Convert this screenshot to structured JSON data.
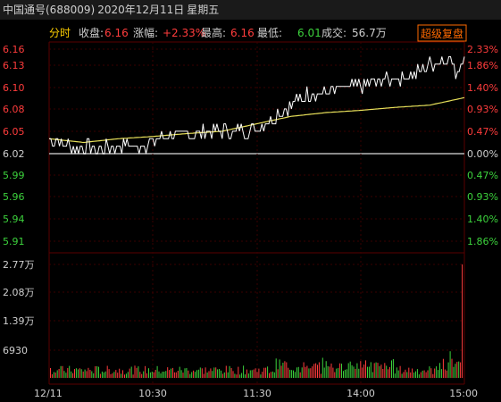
{
  "header": {
    "stock": "中国通号(688009)",
    "date": "2020年12月11日",
    "weekday": "星期五"
  },
  "info": {
    "mode_label": "分时",
    "close_label": "收盘:",
    "close_value": "6.16",
    "change_label": "涨幅:",
    "change_value": "+2.33%",
    "high_label": "最高:",
    "high_value": "6.16",
    "low_label": "最低:",
    "low_value": "6.01",
    "volume_label": "成交:",
    "volume_value": "56.7万",
    "button_label": "超级复盘"
  },
  "colors": {
    "up": "#ff3c3c",
    "down": "#3cd23c",
    "neutral": "#d0d0d0",
    "price_line": "#ffffff",
    "avg_line": "#e8e05a",
    "grid": "#3a0000",
    "accent_button": "#ff6a00"
  },
  "chart_data": {
    "type": "line",
    "base_price": 6.02,
    "price_ticks": [
      "6.16",
      "6.13",
      "6.10",
      "6.08",
      "6.05",
      "6.02",
      "5.99",
      "5.96",
      "5.94",
      "5.91"
    ],
    "pct_ticks": [
      "2.33%",
      "1.86%",
      "1.40%",
      "0.93%",
      "0.47%",
      "0.00%",
      "0.47%",
      "0.93%",
      "1.40%",
      "1.86%"
    ],
    "volume_ticks": [
      "2.77万",
      "2.08万",
      "1.39万",
      "6930"
    ],
    "time_ticks": [
      "12/11",
      "10:30",
      "11:30",
      "14:00",
      "15:00"
    ],
    "ylim": [
      5.88,
      6.16
    ],
    "volume_max": 27700,
    "price_keyframes": [
      [
        0,
        6.045
      ],
      [
        5,
        6.035
      ],
      [
        12,
        6.03
      ],
      [
        20,
        6.028
      ],
      [
        30,
        6.025
      ],
      [
        40,
        6.03
      ],
      [
        50,
        6.03
      ],
      [
        60,
        6.035
      ],
      [
        70,
        6.045
      ],
      [
        80,
        6.045
      ],
      [
        90,
        6.05
      ],
      [
        100,
        6.05
      ],
      [
        110,
        6.05
      ],
      [
        120,
        6.055
      ],
      [
        140,
        6.085
      ],
      [
        150,
        6.1
      ],
      [
        165,
        6.105
      ],
      [
        180,
        6.11
      ],
      [
        195,
        6.12
      ],
      [
        210,
        6.125
      ],
      [
        220,
        6.14
      ],
      [
        232,
        6.15
      ],
      [
        235,
        6.125
      ],
      [
        240,
        6.16
      ]
    ],
    "avg_keyframes": [
      [
        0,
        6.04
      ],
      [
        20,
        6.035
      ],
      [
        40,
        6.04
      ],
      [
        60,
        6.043
      ],
      [
        80,
        6.047
      ],
      [
        100,
        6.05
      ],
      [
        120,
        6.06
      ],
      [
        140,
        6.07
      ],
      [
        160,
        6.075
      ],
      [
        180,
        6.078
      ],
      [
        200,
        6.082
      ],
      [
        220,
        6.085
      ],
      [
        240,
        6.095
      ]
    ]
  }
}
